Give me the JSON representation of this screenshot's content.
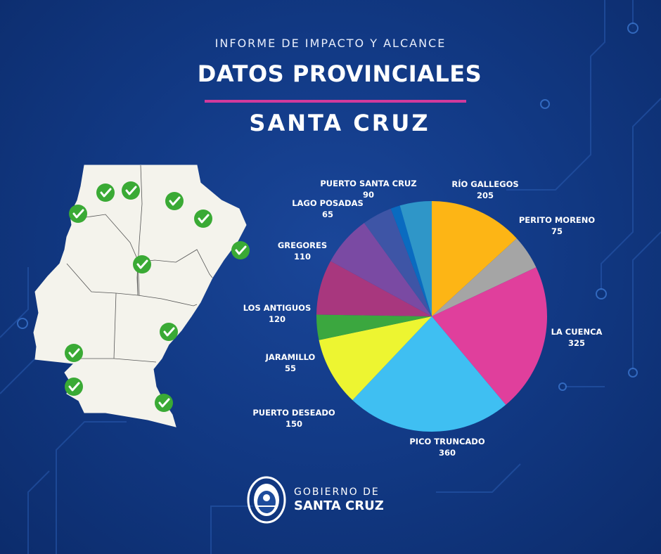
{
  "header": {
    "subtitle": "INFORME DE IMPACTO Y ALCANCE",
    "title": "DATOS PROVINCIALES",
    "province": "SANTA CRUZ"
  },
  "footer": {
    "line1": "GOBIERNO DE",
    "line2": "SANTA CRUZ"
  },
  "colors": {
    "background": "#123a86",
    "accent": "#d13a9c",
    "check": "#3aaa35",
    "map_fill": "#f4f3ec"
  },
  "map": {
    "marker_icon": "check-circle-icon",
    "marker_count": 12
  },
  "chart_data": {
    "type": "pie",
    "categories": [
      "RÍO GALLEGOS",
      "PERITO MORENO",
      "LA CUENCA",
      "PICO TRUNCADO",
      "PUERTO DESEADO",
      "JARAMILLO",
      "LOS ANTIGUOS",
      "GREGORES",
      "LAGO POSADAS",
      "PUERTO SANTA CRUZ"
    ],
    "values": [
      205,
      75,
      325,
      360,
      150,
      55,
      120,
      110,
      65,
      90
    ],
    "colors": [
      "#fdb515",
      "#a5a5a5",
      "#e03f9c",
      "#3fbff2",
      "#edf531",
      "#3ba73f",
      "#a8377e",
      "#7a4aa3",
      "#3e55a6",
      "#0a6bc0"
    ],
    "extra_color": "#2f96c8",
    "start": "12 o'clock",
    "direction": "clockwise"
  }
}
